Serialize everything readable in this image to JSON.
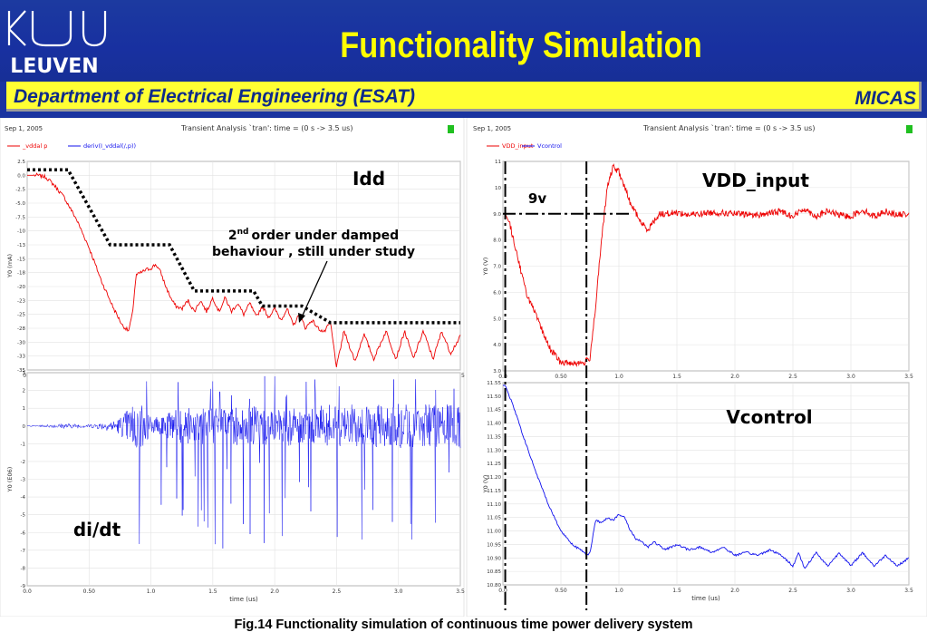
{
  "header": {
    "title": "Functionality Simulation",
    "logo_text": "LEUVEN",
    "department": "Department of Electrical Engineering (ESAT)",
    "group": "MICAS",
    "colors": {
      "background": "#1a34a0",
      "title": "#ffff00",
      "bar": "#ffff33",
      "bar_text": "#0e2a8a"
    }
  },
  "caption": "Fig.14  Functionality simulation of continuous time power delivery system",
  "left_panel": {
    "date": "Sep 1, 2005",
    "analysis": "Transient Analysis `tran': time = (0 s -> 3.5 us)",
    "legend": [
      "_vddal p",
      "deriv(I_vddal(/,p))"
    ]
  },
  "right_panel": {
    "date": "Sep 1, 2005",
    "analysis": "Transient Analysis `tran': time = (0 s -> 3.5 us)",
    "legend": [
      "VDD_input",
      "Vcontrol"
    ]
  },
  "annotations": {
    "idd": "Idd",
    "didt": "di/dt",
    "vdd_input": "VDD_input",
    "vcontrol": "Vcontrol",
    "nine_v": "9v",
    "note_sup": "2",
    "note_nd": "nd",
    "note_line1": "order under damped",
    "note_line2": "behaviour ,  still under study"
  },
  "chart_data": [
    {
      "id": "idd",
      "type": "line",
      "ylabel": "Y0 (mA)",
      "xlabel": "time (us)",
      "xlim": [
        0,
        3.5
      ],
      "ylim": [
        -35,
        2.5
      ],
      "x_ticks": [
        "0.0",
        "0.50",
        "1.0",
        "1.5",
        "2.0",
        "2.5",
        "3.0",
        "3.5"
      ],
      "y_ticks": [
        "2.5",
        "0.0",
        "-2.5",
        "-5.0",
        "-7.5",
        "-10",
        "-13",
        "-15",
        "-18",
        "-20",
        "-23",
        "-25",
        "-28",
        "-30",
        "-33",
        "-35"
      ],
      "color": "#ee0000",
      "series": [
        {
          "name": "_vddal p",
          "x": [
            0,
            0.08,
            0.15,
            0.22,
            0.3,
            0.4,
            0.5,
            0.6,
            0.7,
            0.77,
            0.82,
            0.85,
            0.88,
            0.92,
            0.96,
            1.0,
            1.04,
            1.08,
            1.12,
            1.17,
            1.2,
            1.25,
            1.3,
            1.35,
            1.4,
            1.45,
            1.5,
            1.55,
            1.6,
            1.65,
            1.7,
            1.75,
            1.8,
            1.85,
            1.9,
            1.95,
            2.0,
            2.05,
            2.1,
            2.15,
            2.2,
            2.25,
            2.3,
            2.35,
            2.4,
            2.45,
            2.5,
            2.56,
            2.65,
            2.72,
            2.8,
            2.9,
            2.98,
            3.05,
            3.12,
            3.2,
            3.28,
            3.35,
            3.42,
            3.5
          ],
          "y": [
            0,
            0,
            -0.3,
            -1.8,
            -4,
            -8,
            -13,
            -19,
            -24,
            -27,
            -28,
            -25,
            -18,
            -17.5,
            -17,
            -16.7,
            -16,
            -17.5,
            -20,
            -22.5,
            -23.5,
            -24,
            -22.5,
            -24.5,
            -22.5,
            -24.5,
            -22,
            -24.5,
            -22,
            -24.5,
            -23,
            -25,
            -23,
            -25.5,
            -23.5,
            -25.5,
            -24,
            -26,
            -24,
            -27,
            -25,
            -27.5,
            -26,
            -27.5,
            -28.2,
            -26.5,
            -34.5,
            -28,
            -33.5,
            -28.5,
            -33,
            -28,
            -33,
            -28,
            -33,
            -28,
            -33,
            -28,
            -32,
            -29
          ]
        }
      ],
      "envelope": {
        "x": [
          0,
          0.33,
          0.67,
          1.15,
          1.35,
          1.83,
          1.9,
          2.22,
          2.45,
          3.5
        ],
        "y": [
          1,
          1,
          -12.5,
          -12.5,
          -20.8,
          -20.8,
          -23.5,
          -23.5,
          -26.5,
          -26.5
        ]
      }
    },
    {
      "id": "didt",
      "type": "line",
      "ylabel": "Y0 (E06)",
      "xlabel": "time (us)",
      "xlim": [
        0,
        3.5
      ],
      "ylim": [
        -9,
        3
      ],
      "x_ticks": [
        "0.0",
        "0.50",
        "1.0",
        "1.5",
        "2.0",
        "2.5",
        "3.0",
        "3.5"
      ],
      "y_ticks": [
        "3",
        "2",
        "1",
        "0",
        "-1",
        "-2",
        "-3",
        "-4",
        "-5",
        "-6",
        "-7",
        "-8",
        "-9"
      ],
      "color": "#1010ee",
      "series": [
        {
          "name": "deriv(I_vddal(/,p))",
          "x": [
            0,
            0.1,
            0.3,
            0.5,
            0.6,
            0.7,
            0.75,
            0.8,
            0.85,
            0.9,
            0.95,
            1.0,
            1.05,
            1.1,
            1.2,
            1.3,
            1.5,
            1.8,
            2.0,
            2.3,
            2.5,
            2.8,
            3.0,
            3.3,
            3.5
          ],
          "amplitude": [
            0.02,
            0.05,
            0.15,
            0.1,
            0.2,
            0.3,
            0.5,
            0.9,
            1.2,
            1.6,
            1.0,
            0.5,
            0.5,
            0.6,
            0.9,
            1.0,
            1.05,
            1.1,
            1.1,
            1.15,
            1.2,
            1.2,
            1.25,
            1.2,
            1.25
          ]
        }
      ]
    },
    {
      "id": "vdd_input",
      "type": "line",
      "ylabel": "Y0 (V)",
      "xlabel": "time (us)",
      "xlim": [
        0,
        3.5
      ],
      "ylim": [
        3,
        11
      ],
      "x_ticks": [
        "0.0",
        "0.50",
        "1.0",
        "1.5",
        "2.0",
        "2.5",
        "3.0",
        "3.5"
      ],
      "y_ticks": [
        "11",
        "10",
        "9.0",
        "8.0",
        "7.0",
        "6.0",
        "5.0",
        "4.0",
        "3.0"
      ],
      "color": "#ee0000",
      "series": [
        {
          "name": "VDD_input",
          "x": [
            0,
            0.02,
            0.06,
            0.2,
            0.4,
            0.5,
            0.55,
            0.6,
            0.7,
            0.75,
            0.8,
            0.85,
            0.9,
            0.95,
            1.0,
            1.05,
            1.1,
            1.15,
            1.2,
            1.25,
            1.3,
            1.35,
            1.4,
            1.5,
            1.6,
            1.8,
            2.0,
            2.2,
            2.4,
            2.5,
            2.6,
            2.7,
            2.8,
            2.9,
            3.0,
            3.1,
            3.2,
            3.3,
            3.4,
            3.5
          ],
          "y": [
            9.0,
            9.0,
            8.6,
            6.0,
            3.9,
            3.3,
            3.3,
            3.3,
            3.3,
            3.5,
            5.5,
            8.0,
            10.0,
            10.8,
            10.6,
            10.0,
            9.4,
            9.0,
            8.6,
            8.4,
            8.7,
            9.0,
            9.0,
            9.05,
            8.95,
            9.05,
            9.0,
            8.95,
            9.1,
            8.9,
            9.2,
            8.9,
            9.1,
            8.95,
            8.9,
            9.15,
            8.9,
            9.1,
            8.95,
            9.0
          ]
        }
      ],
      "markers": {
        "dashdot_vertical_x": [
          0.02,
          0.72
        ],
        "nine_volt_level": 9.0
      }
    },
    {
      "id": "vcontrol",
      "type": "line",
      "ylabel": "Y0 (V)",
      "xlabel": "time (us)",
      "xlim": [
        0,
        3.5
      ],
      "ylim": [
        10.8,
        11.55
      ],
      "x_ticks": [
        "0.0",
        "0.50",
        "1.0",
        "1.5",
        "2.0",
        "2.5",
        "3.0",
        "3.5"
      ],
      "y_ticks": [
        "11.55",
        "11.50",
        "11.45",
        "11.40",
        "11.35",
        "11.30",
        "11.25",
        "11.20",
        "11.15",
        "11.10",
        "11.05",
        "11.00",
        "10.95",
        "10.90",
        "10.85",
        "10.80"
      ],
      "color": "#1010ee",
      "series": [
        {
          "name": "Vcontrol",
          "x": [
            0,
            0.02,
            0.1,
            0.2,
            0.3,
            0.4,
            0.5,
            0.6,
            0.7,
            0.72,
            0.75,
            0.8,
            0.85,
            0.9,
            0.95,
            1.0,
            1.05,
            1.1,
            1.15,
            1.2,
            1.25,
            1.3,
            1.4,
            1.5,
            1.6,
            1.7,
            1.8,
            1.9,
            2.0,
            2.1,
            2.2,
            2.3,
            2.4,
            2.5,
            2.55,
            2.6,
            2.7,
            2.8,
            2.9,
            3.0,
            3.1,
            3.2,
            3.3,
            3.4,
            3.5
          ],
          "y": [
            11.54,
            11.54,
            11.45,
            11.32,
            11.2,
            11.09,
            11.0,
            10.95,
            10.92,
            10.91,
            10.92,
            11.04,
            11.03,
            11.05,
            11.04,
            11.06,
            11.05,
            11.0,
            10.97,
            10.96,
            10.94,
            10.96,
            10.93,
            10.95,
            10.93,
            10.94,
            10.92,
            10.94,
            10.91,
            10.92,
            10.91,
            10.93,
            10.91,
            10.87,
            10.92,
            10.86,
            10.92,
            10.87,
            10.92,
            10.87,
            10.92,
            10.87,
            10.91,
            10.87,
            10.9
          ]
        }
      ],
      "markers": {
        "dashdot_vertical_x": [
          0.02,
          0.72
        ]
      }
    }
  ]
}
